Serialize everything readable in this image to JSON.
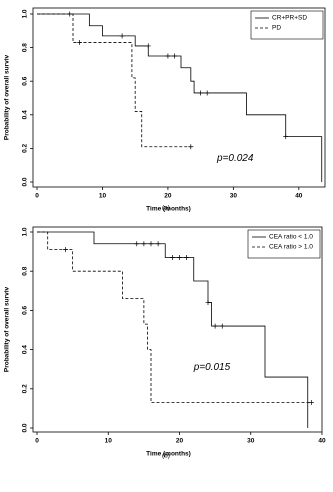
{
  "chart_data": [
    {
      "type": "step",
      "label": "(a)",
      "xlabel": "Time (months)",
      "ylabel": "Probability of overall surviv",
      "annotation": "p=0.024",
      "xlim": [
        0,
        44
      ],
      "xticks": [
        0,
        10,
        20,
        30,
        40
      ],
      "ylim": [
        0,
        1
      ],
      "yticks": [
        {
          "value": 0,
          "label": "0.0"
        },
        0.2,
        0.4,
        0.6,
        0.8,
        {
          "value": 1,
          "label": "1.0"
        }
      ],
      "legend": "top-right",
      "series": [
        {
          "name": "CR+PR+SD",
          "color": "#000000",
          "dash": "solid",
          "x": [
            0,
            8,
            10,
            15,
            17,
            22,
            23.5,
            24,
            32,
            38,
            43.5
          ],
          "values": [
            1.0,
            0.93,
            0.87,
            0.81,
            0.75,
            0.68,
            0.6,
            0.53,
            0.4,
            0.27,
            0.0
          ],
          "censored": {
            "x": [
              5,
              13,
              17,
              20,
              21,
              25,
              26,
              38
            ],
            "values": [
              1.0,
              0.87,
              0.81,
              0.75,
              0.75,
              0.53,
              0.53,
              0.27
            ]
          }
        },
        {
          "name": "PD",
          "color": "#000000",
          "dash": "dashed",
          "x": [
            0,
            5.5,
            14.5,
            15,
            16,
            23.5
          ],
          "values": [
            1.0,
            0.83,
            0.62,
            0.42,
            0.21,
            0.21
          ],
          "censored": {
            "x": [
              6.5,
              23.5
            ],
            "values": [
              0.83,
              0.21
            ]
          }
        }
      ]
    },
    {
      "type": "step",
      "label": "(b)",
      "xlabel": "Time (months)",
      "ylabel": "Probability of overall surviv",
      "annotation": "p=0.015",
      "xlim": [
        0,
        40
      ],
      "xticks": [
        0,
        10,
        20,
        30,
        40
      ],
      "ylim": [
        0,
        1
      ],
      "yticks": [
        {
          "value": 0,
          "label": "0.0"
        },
        0.2,
        0.4,
        0.6,
        0.8,
        {
          "value": 1,
          "label": "1.0"
        }
      ],
      "legend": "top-right",
      "series": [
        {
          "name": "CEA ratio < 1.0",
          "color": "#000000",
          "dash": "solid",
          "x": [
            0,
            8,
            18,
            22,
            24,
            24.5,
            32,
            38
          ],
          "values": [
            1.0,
            0.94,
            0.87,
            0.75,
            0.64,
            0.52,
            0.26,
            0.0
          ],
          "censored": {
            "x": [
              14,
              15,
              16,
              17,
              19,
              20,
              21,
              24,
              25,
              26
            ],
            "values": [
              0.94,
              0.94,
              0.94,
              0.94,
              0.87,
              0.87,
              0.87,
              0.64,
              0.52,
              0.52
            ]
          }
        },
        {
          "name": "CEA ratio > 1.0",
          "color": "#000000",
          "dash": "dashed",
          "x": [
            0,
            1.5,
            5,
            12,
            15,
            15.5,
            16,
            38.5
          ],
          "values": [
            1.0,
            0.91,
            0.8,
            0.66,
            0.53,
            0.4,
            0.13,
            0.13
          ],
          "censored": {
            "x": [
              4,
              38.5
            ],
            "values": [
              0.91,
              0.13
            ]
          }
        }
      ]
    }
  ]
}
